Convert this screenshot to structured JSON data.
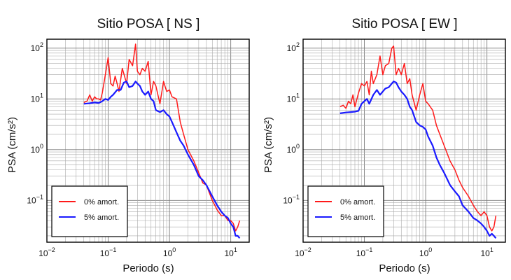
{
  "chart_data": [
    {
      "type": "line",
      "title": "Sitio POSA [ NS ]",
      "xlabel": "Periodo (s)",
      "ylabel": "PSA (cm/s²)",
      "x_scale": "log",
      "y_scale": "log",
      "xlim": [
        0.01,
        20
      ],
      "ylim": [
        0.015,
        150
      ],
      "x_tick_labels": [
        {
          "value": 0.01,
          "base": "10",
          "exp": "−2"
        },
        {
          "value": 0.1,
          "base": "10",
          "exp": "−1"
        },
        {
          "value": 1,
          "base": "10",
          "exp": "0"
        },
        {
          "value": 10,
          "base": "10",
          "exp": "1"
        }
      ],
      "y_tick_labels": [
        {
          "value": 0.1,
          "base": "10",
          "exp": "−1"
        },
        {
          "value": 1,
          "base": "10",
          "exp": "0"
        },
        {
          "value": 10,
          "base": "10",
          "exp": "1"
        },
        {
          "value": 100,
          "base": "10",
          "exp": "2"
        }
      ],
      "grid": true,
      "legend_position": "bottom-left",
      "series": [
        {
          "name": "0% amort.",
          "color": "#ff1a1a",
          "x": [
            0.04,
            0.045,
            0.05,
            0.055,
            0.06,
            0.065,
            0.07,
            0.075,
            0.08,
            0.09,
            0.1,
            0.11,
            0.12,
            0.13,
            0.14,
            0.15,
            0.17,
            0.2,
            0.22,
            0.25,
            0.28,
            0.3,
            0.33,
            0.36,
            0.4,
            0.45,
            0.5,
            0.55,
            0.6,
            0.7,
            0.8,
            0.9,
            1.0,
            1.1,
            1.3,
            1.5,
            1.7,
            2.0,
            2.5,
            3.0,
            3.5,
            4.0,
            5.0,
            6.0,
            7.0,
            8.0,
            9.0,
            10.0,
            11.0,
            12.0,
            13.0,
            14.0
          ],
          "y": [
            8.5,
            9,
            12,
            9,
            11,
            10,
            10,
            9.5,
            13,
            30,
            65,
            20,
            18,
            28,
            20,
            14,
            40,
            20,
            60,
            45,
            120,
            35,
            30,
            40,
            35,
            55,
            12,
            22,
            18,
            8,
            22,
            14,
            15,
            11,
            10,
            3.5,
            2,
            1,
            0.6,
            0.35,
            0.22,
            0.2,
            0.1,
            0.065,
            0.05,
            0.05,
            0.04,
            0.04,
            0.035,
            0.025,
            0.03,
            0.04
          ]
        },
        {
          "name": "5% amort.",
          "color": "#1a1aff",
          "x": [
            0.04,
            0.05,
            0.06,
            0.07,
            0.08,
            0.09,
            0.1,
            0.11,
            0.12,
            0.14,
            0.16,
            0.18,
            0.2,
            0.22,
            0.25,
            0.28,
            0.3,
            0.33,
            0.36,
            0.4,
            0.45,
            0.5,
            0.55,
            0.6,
            0.7,
            0.8,
            0.9,
            1.0,
            1.1,
            1.3,
            1.5,
            1.7,
            2.0,
            2.5,
            3.0,
            3.5,
            4.0,
            5.0,
            6.0,
            7.0,
            8.0,
            9.0,
            10.0,
            11.0,
            12.0,
            13.0,
            14.0
          ],
          "y": [
            8,
            8.2,
            8.5,
            8.3,
            9,
            10,
            9.5,
            11,
            12,
            15,
            15,
            21,
            22,
            17,
            18,
            22,
            20,
            18,
            14,
            12,
            14,
            10,
            9,
            6,
            5.5,
            6,
            5,
            4.5,
            3.5,
            2.2,
            1.5,
            1.2,
            0.8,
            0.5,
            0.3,
            0.25,
            0.2,
            0.12,
            0.08,
            0.06,
            0.05,
            0.045,
            0.035,
            0.03,
            0.02,
            0.02,
            0.018
          ]
        }
      ],
      "legend": [
        {
          "name": "0% amort.",
          "color": "#ff1a1a"
        },
        {
          "name": "5% amort.",
          "color": "#1a1aff"
        }
      ]
    },
    {
      "type": "line",
      "title": "Sitio POSA [ EW ]",
      "xlabel": "Periodo (s)",
      "ylabel": "PSA (cm/s²)",
      "x_scale": "log",
      "y_scale": "log",
      "xlim": [
        0.01,
        20
      ],
      "ylim": [
        0.015,
        150
      ],
      "x_tick_labels": [
        {
          "value": 0.01,
          "base": "10",
          "exp": "−2"
        },
        {
          "value": 0.1,
          "base": "10",
          "exp": "−1"
        },
        {
          "value": 1,
          "base": "10",
          "exp": "0"
        },
        {
          "value": 10,
          "base": "10",
          "exp": "1"
        }
      ],
      "y_tick_labels": [
        {
          "value": 0.1,
          "base": "10",
          "exp": "−1"
        },
        {
          "value": 1,
          "base": "10",
          "exp": "0"
        },
        {
          "value": 10,
          "base": "10",
          "exp": "1"
        },
        {
          "value": 100,
          "base": "10",
          "exp": "2"
        }
      ],
      "grid": true,
      "legend_position": "bottom-left",
      "series": [
        {
          "name": "0% amort.",
          "color": "#ff1a1a",
          "x": [
            0.04,
            0.045,
            0.05,
            0.055,
            0.06,
            0.065,
            0.07,
            0.08,
            0.09,
            0.1,
            0.11,
            0.12,
            0.13,
            0.14,
            0.16,
            0.18,
            0.2,
            0.22,
            0.25,
            0.28,
            0.3,
            0.33,
            0.36,
            0.4,
            0.45,
            0.5,
            0.55,
            0.6,
            0.7,
            0.8,
            0.9,
            1.0,
            1.1,
            1.3,
            1.5,
            1.7,
            2.0,
            2.5,
            3.0,
            3.5,
            4.0,
            5.0,
            6.0,
            7.0,
            8.0,
            9.0,
            10.0,
            11.0,
            12.0,
            13.0,
            14.0
          ],
          "y": [
            7,
            7.5,
            6.5,
            9,
            8,
            12,
            7,
            13,
            20,
            18,
            22,
            12,
            35,
            20,
            30,
            70,
            30,
            45,
            50,
            100,
            110,
            30,
            40,
            30,
            50,
            20,
            25,
            12,
            6,
            12,
            20,
            9,
            8,
            6,
            3,
            2,
            1.2,
            0.6,
            0.4,
            0.25,
            0.18,
            0.12,
            0.08,
            0.06,
            0.05,
            0.06,
            0.05,
            0.03,
            0.025,
            0.03,
            0.05
          ]
        },
        {
          "name": "5% amort.",
          "color": "#1a1aff",
          "x": [
            0.04,
            0.05,
            0.06,
            0.07,
            0.08,
            0.09,
            0.1,
            0.11,
            0.12,
            0.14,
            0.16,
            0.18,
            0.2,
            0.22,
            0.25,
            0.28,
            0.3,
            0.33,
            0.36,
            0.4,
            0.45,
            0.5,
            0.55,
            0.6,
            0.7,
            0.8,
            0.9,
            1.0,
            1.1,
            1.3,
            1.5,
            1.7,
            2.0,
            2.5,
            3.0,
            3.5,
            4.0,
            5.0,
            6.0,
            7.0,
            8.0,
            9.0,
            10.0,
            11.0,
            12.0,
            13.0,
            14.0
          ],
          "y": [
            5.2,
            5.4,
            5.5,
            5.6,
            5.8,
            8,
            9,
            10,
            8,
            12,
            15,
            12,
            14,
            16,
            17,
            20,
            22,
            21,
            17,
            14,
            12,
            10,
            7,
            6,
            3.5,
            3,
            2.8,
            2.5,
            1.8,
            1.2,
            0.7,
            0.5,
            0.35,
            0.2,
            0.15,
            0.12,
            0.08,
            0.06,
            0.045,
            0.04,
            0.035,
            0.03,
            0.025,
            0.02,
            0.022,
            0.02,
            0.018
          ]
        }
      ],
      "legend": [
        {
          "name": "0% amort.",
          "color": "#ff1a1a"
        },
        {
          "name": "5% amort.",
          "color": "#1a1aff"
        }
      ]
    }
  ]
}
